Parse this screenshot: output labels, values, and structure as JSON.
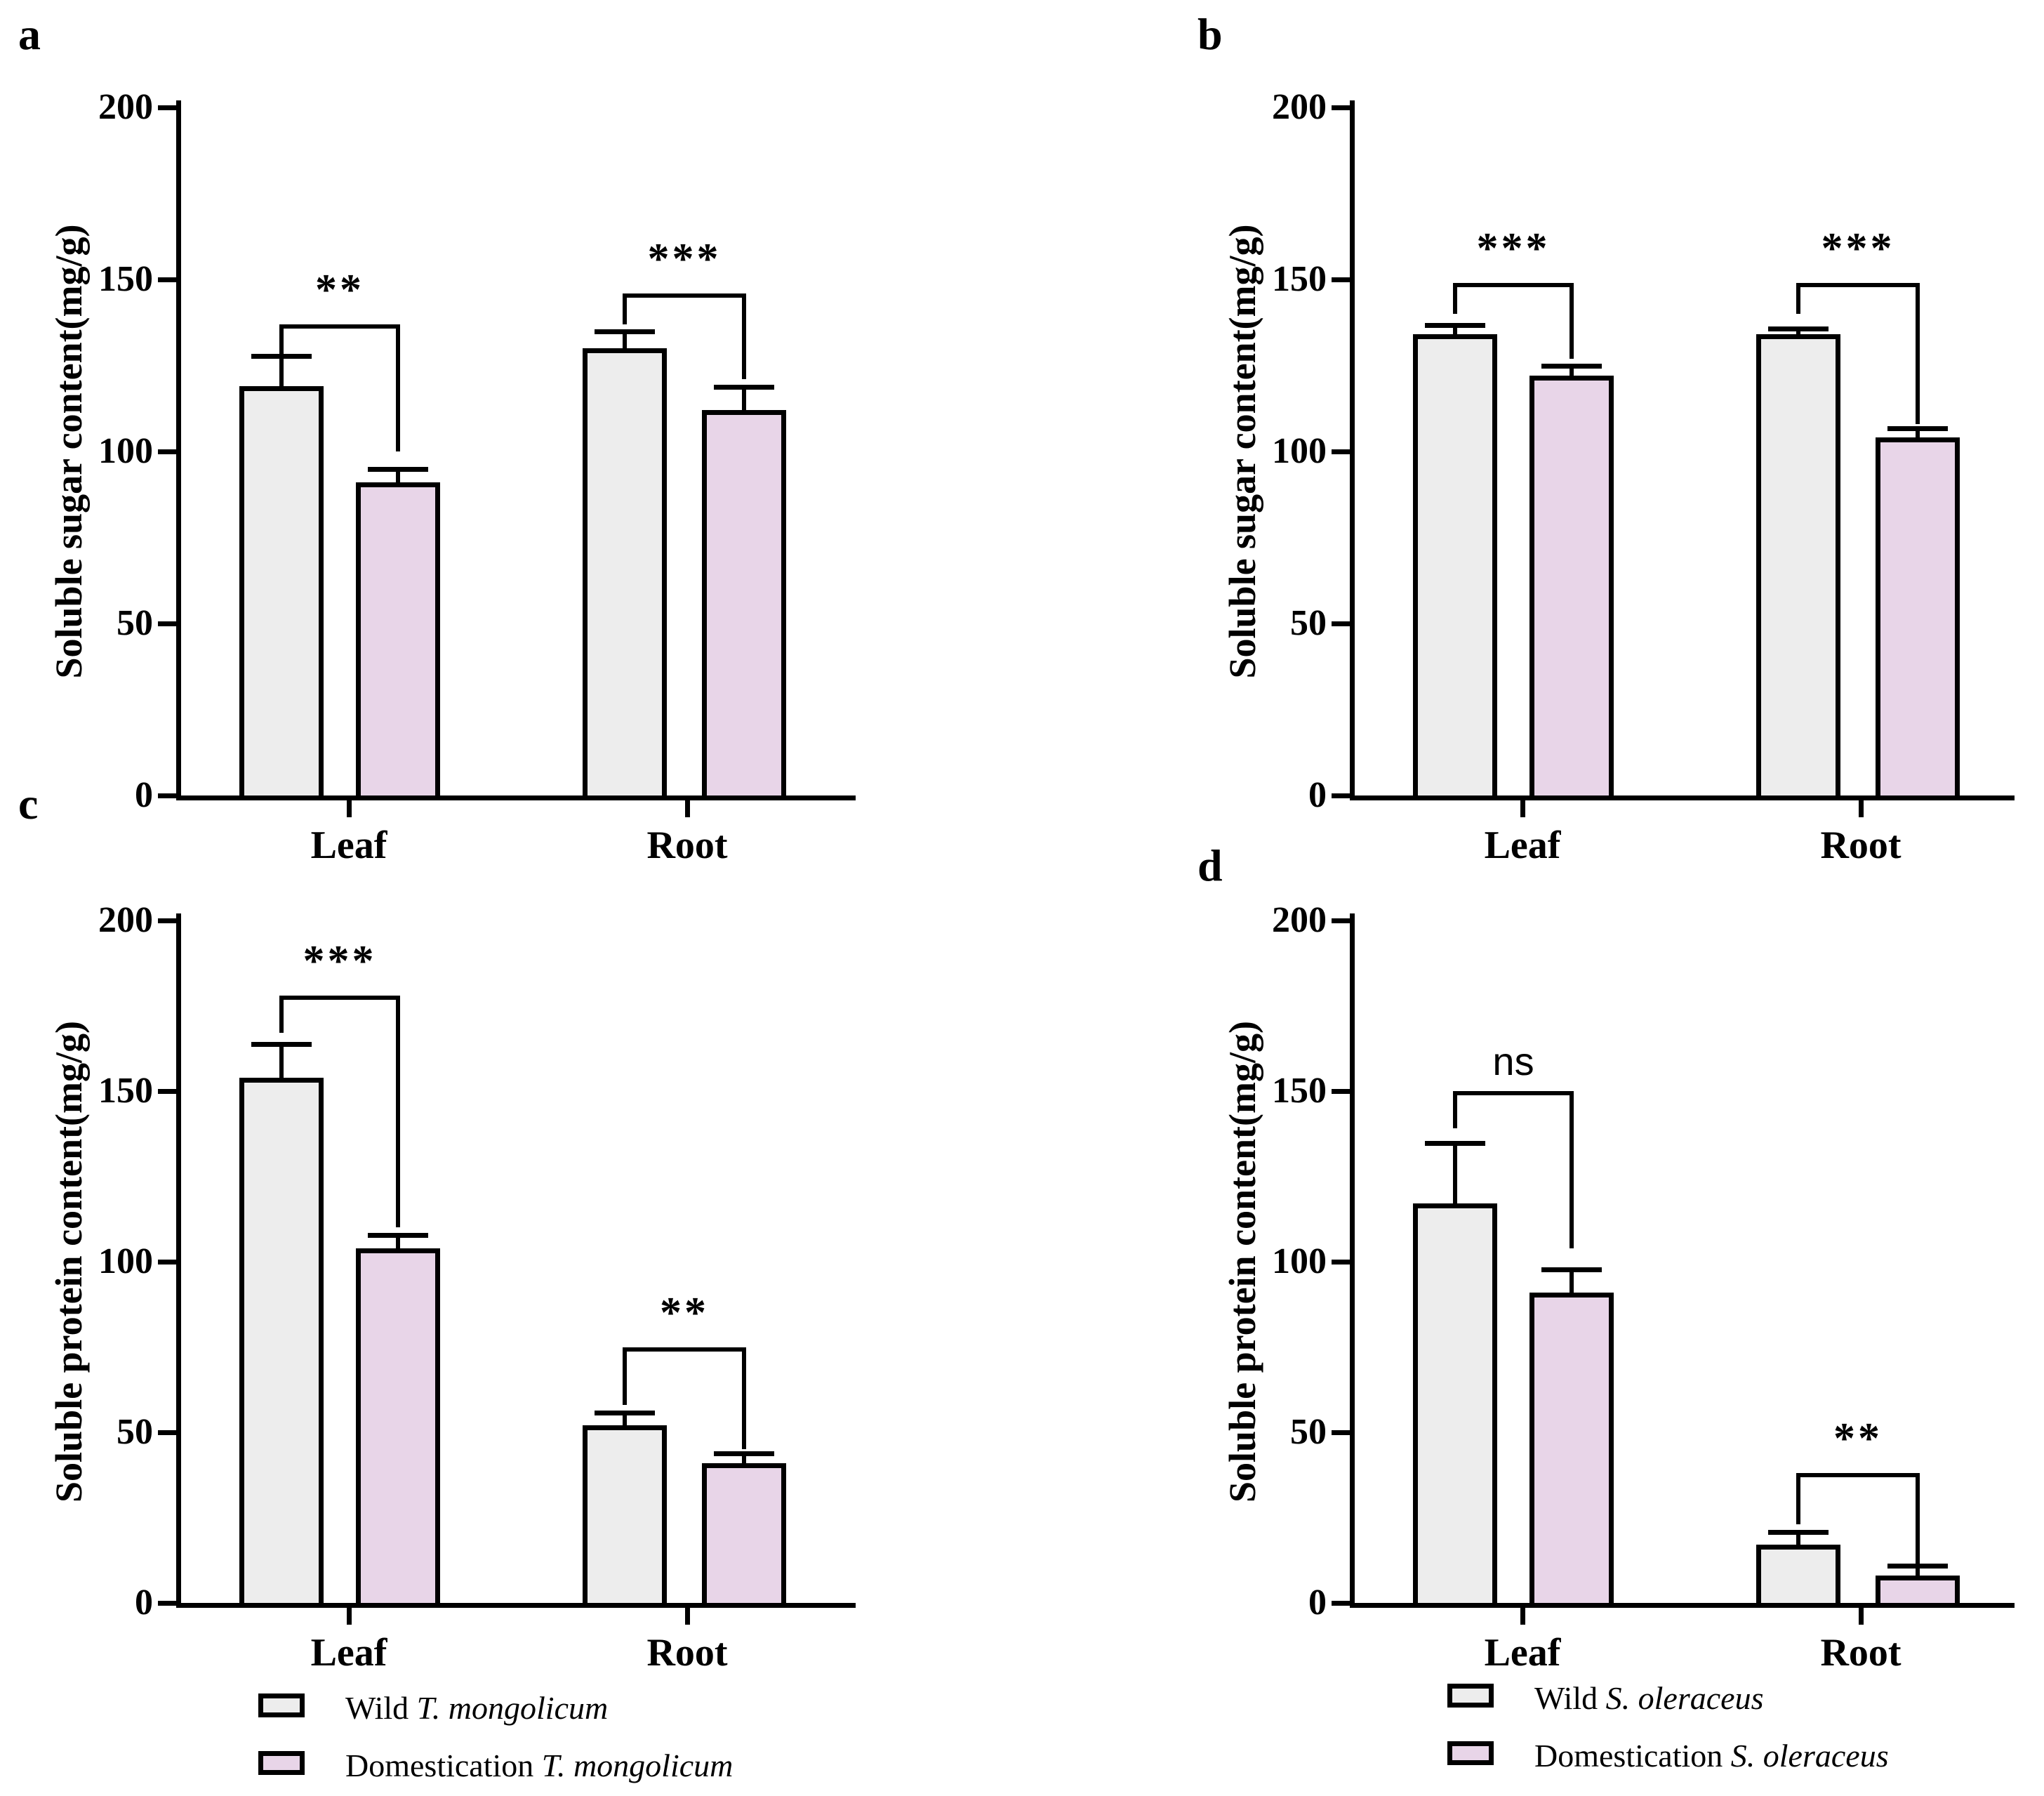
{
  "figure": {
    "background": "#ffffff",
    "ink_color": "#000000",
    "bar_colors": {
      "wild": "#ededed",
      "domestication": "#e8d5e8"
    }
  },
  "chart_data": [
    {
      "id": "a",
      "type": "bar",
      "letter": "a",
      "ylabel": "Soluble sugar content(mg/g)",
      "xlabel": "",
      "ylim": [
        0,
        200
      ],
      "yticks": [
        0,
        50,
        100,
        150,
        200
      ],
      "grid": false,
      "categories": [
        "Leaf",
        "Root"
      ],
      "series": [
        {
          "name": "Wild T. mongolicum",
          "fill": "wild",
          "values": [
            119,
            130
          ],
          "errors": [
            8,
            4
          ]
        },
        {
          "name": "Domestication T. mongolicum",
          "fill": "domestication",
          "values": [
            91,
            112
          ],
          "errors": [
            3,
            6
          ]
        }
      ],
      "significance": [
        {
          "category": "Leaf",
          "label": "**",
          "bracket_y": 137,
          "left_drop_to": 128,
          "right_drop_to": 100
        },
        {
          "category": "Root",
          "label": "***",
          "bracket_y": 146,
          "left_drop_to": 137,
          "right_drop_to": 121
        }
      ],
      "legend": null
    },
    {
      "id": "b",
      "type": "bar",
      "letter": "b",
      "ylabel": "Soluble sugar content(mg/g)",
      "xlabel": "",
      "ylim": [
        0,
        200
      ],
      "yticks": [
        0,
        50,
        100,
        150,
        200
      ],
      "grid": false,
      "categories": [
        "Leaf",
        "Root"
      ],
      "series": [
        {
          "name": "Wild S. oleraceus",
          "fill": "wild",
          "values": [
            134,
            134
          ],
          "errors": [
            2,
            1
          ]
        },
        {
          "name": "Domestication S. oleraceus",
          "fill": "domestication",
          "values": [
            122,
            104
          ],
          "errors": [
            2,
            2
          ]
        }
      ],
      "significance": [
        {
          "category": "Leaf",
          "label": "***",
          "bracket_y": 149,
          "left_drop_to": 140,
          "right_drop_to": 127
        },
        {
          "category": "Root",
          "label": "***",
          "bracket_y": 149,
          "left_drop_to": 140,
          "right_drop_to": 108
        }
      ],
      "legend": null
    },
    {
      "id": "c",
      "type": "bar",
      "letter": "c",
      "ylabel": "Soluble protein content(mg/g)",
      "xlabel": "",
      "ylim": [
        0,
        200
      ],
      "yticks": [
        0,
        50,
        100,
        150,
        200
      ],
      "grid": false,
      "categories": [
        "Leaf",
        "Root"
      ],
      "series": [
        {
          "name": "Wild T. mongolicum",
          "fill": "wild",
          "values": [
            154,
            52
          ],
          "errors": [
            9,
            3
          ]
        },
        {
          "name": "Domestication T. mongolicum",
          "fill": "domestication",
          "values": [
            104,
            41
          ],
          "errors": [
            3,
            2
          ]
        }
      ],
      "significance": [
        {
          "category": "Leaf",
          "label": "***",
          "bracket_y": 178,
          "left_drop_to": 167,
          "right_drop_to": 110
        },
        {
          "category": "Root",
          "label": "**",
          "bracket_y": 75,
          "left_drop_to": 58,
          "right_drop_to": 45
        }
      ],
      "legend": [
        {
          "prefix": "Wild ",
          "species": "T. mongolicum"
        },
        {
          "prefix": "Domestication ",
          "species": "T. mongolicum"
        }
      ]
    },
    {
      "id": "d",
      "type": "bar",
      "letter": "d",
      "ylabel": "Soluble protein content(mg/g)",
      "xlabel": "",
      "ylim": [
        0,
        200
      ],
      "yticks": [
        0,
        50,
        100,
        150,
        200
      ],
      "grid": false,
      "categories": [
        "Leaf",
        "Root"
      ],
      "series": [
        {
          "name": "Wild S. oleraceus",
          "fill": "wild",
          "values": [
            117,
            17
          ],
          "errors": [
            17,
            3
          ]
        },
        {
          "name": "Domestication S. oleraceus",
          "fill": "domestication",
          "values": [
            91,
            8
          ],
          "errors": [
            6,
            2
          ]
        }
      ],
      "significance": [
        {
          "category": "Leaf",
          "label": "ns",
          "bracket_y": 150,
          "left_drop_to": 139,
          "right_drop_to": 104
        },
        {
          "category": "Root",
          "label": "**",
          "bracket_y": 38,
          "left_drop_to": 23,
          "right_drop_to": 11
        }
      ],
      "legend": [
        {
          "prefix": "Wild ",
          "species": "S. oleraceus"
        },
        {
          "prefix": "Domestication ",
          "species": "S. oleraceus"
        }
      ]
    }
  ]
}
